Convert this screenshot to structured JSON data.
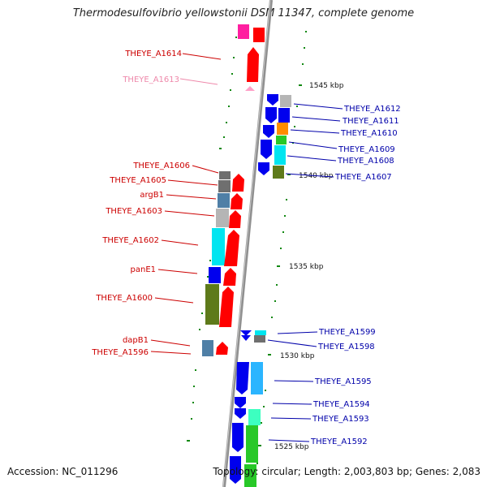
{
  "title": "Thermodesulfovibrio yellowstonii DSM 11347, complete genome",
  "footer": {
    "accession": "Accession: NC_011296",
    "summary": "Topology: circular; Length: 2,003,803 bp; Genes: 2,083"
  },
  "scale_labels": [
    "1545 kbp",
    "1540 kbp",
    "1535 kbp",
    "1530 kbp",
    "1525 kbp"
  ],
  "left_genes": [
    "THEYE_A1614",
    "THEYE_A1613",
    "THEYE_A1606",
    "THEYE_A1605",
    "argB1",
    "THEYE_A1603",
    "THEYE_A1602",
    "panE1",
    "THEYE_A1600",
    "dapB1",
    "THEYE_A1596"
  ],
  "right_genes": [
    "THEYE_A1612",
    "THEYE_A1611",
    "THEYE_A1610",
    "THEYE_A1609",
    "THEYE_A1608",
    "THEYE_A1607",
    "THEYE_A1599",
    "THEYE_A1598",
    "THEYE_A1595",
    "THEYE_A1594",
    "THEYE_A1593",
    "THEYE_A1592"
  ],
  "colors": {
    "forward_label": "#cc0000",
    "pseudo_label": "#ee88aa",
    "reverse_label": "#0000aa",
    "forward_arrow": "#ff0000",
    "reverse_arrow": "#0000ee",
    "backbone": "#888888",
    "tick": "#118811"
  }
}
